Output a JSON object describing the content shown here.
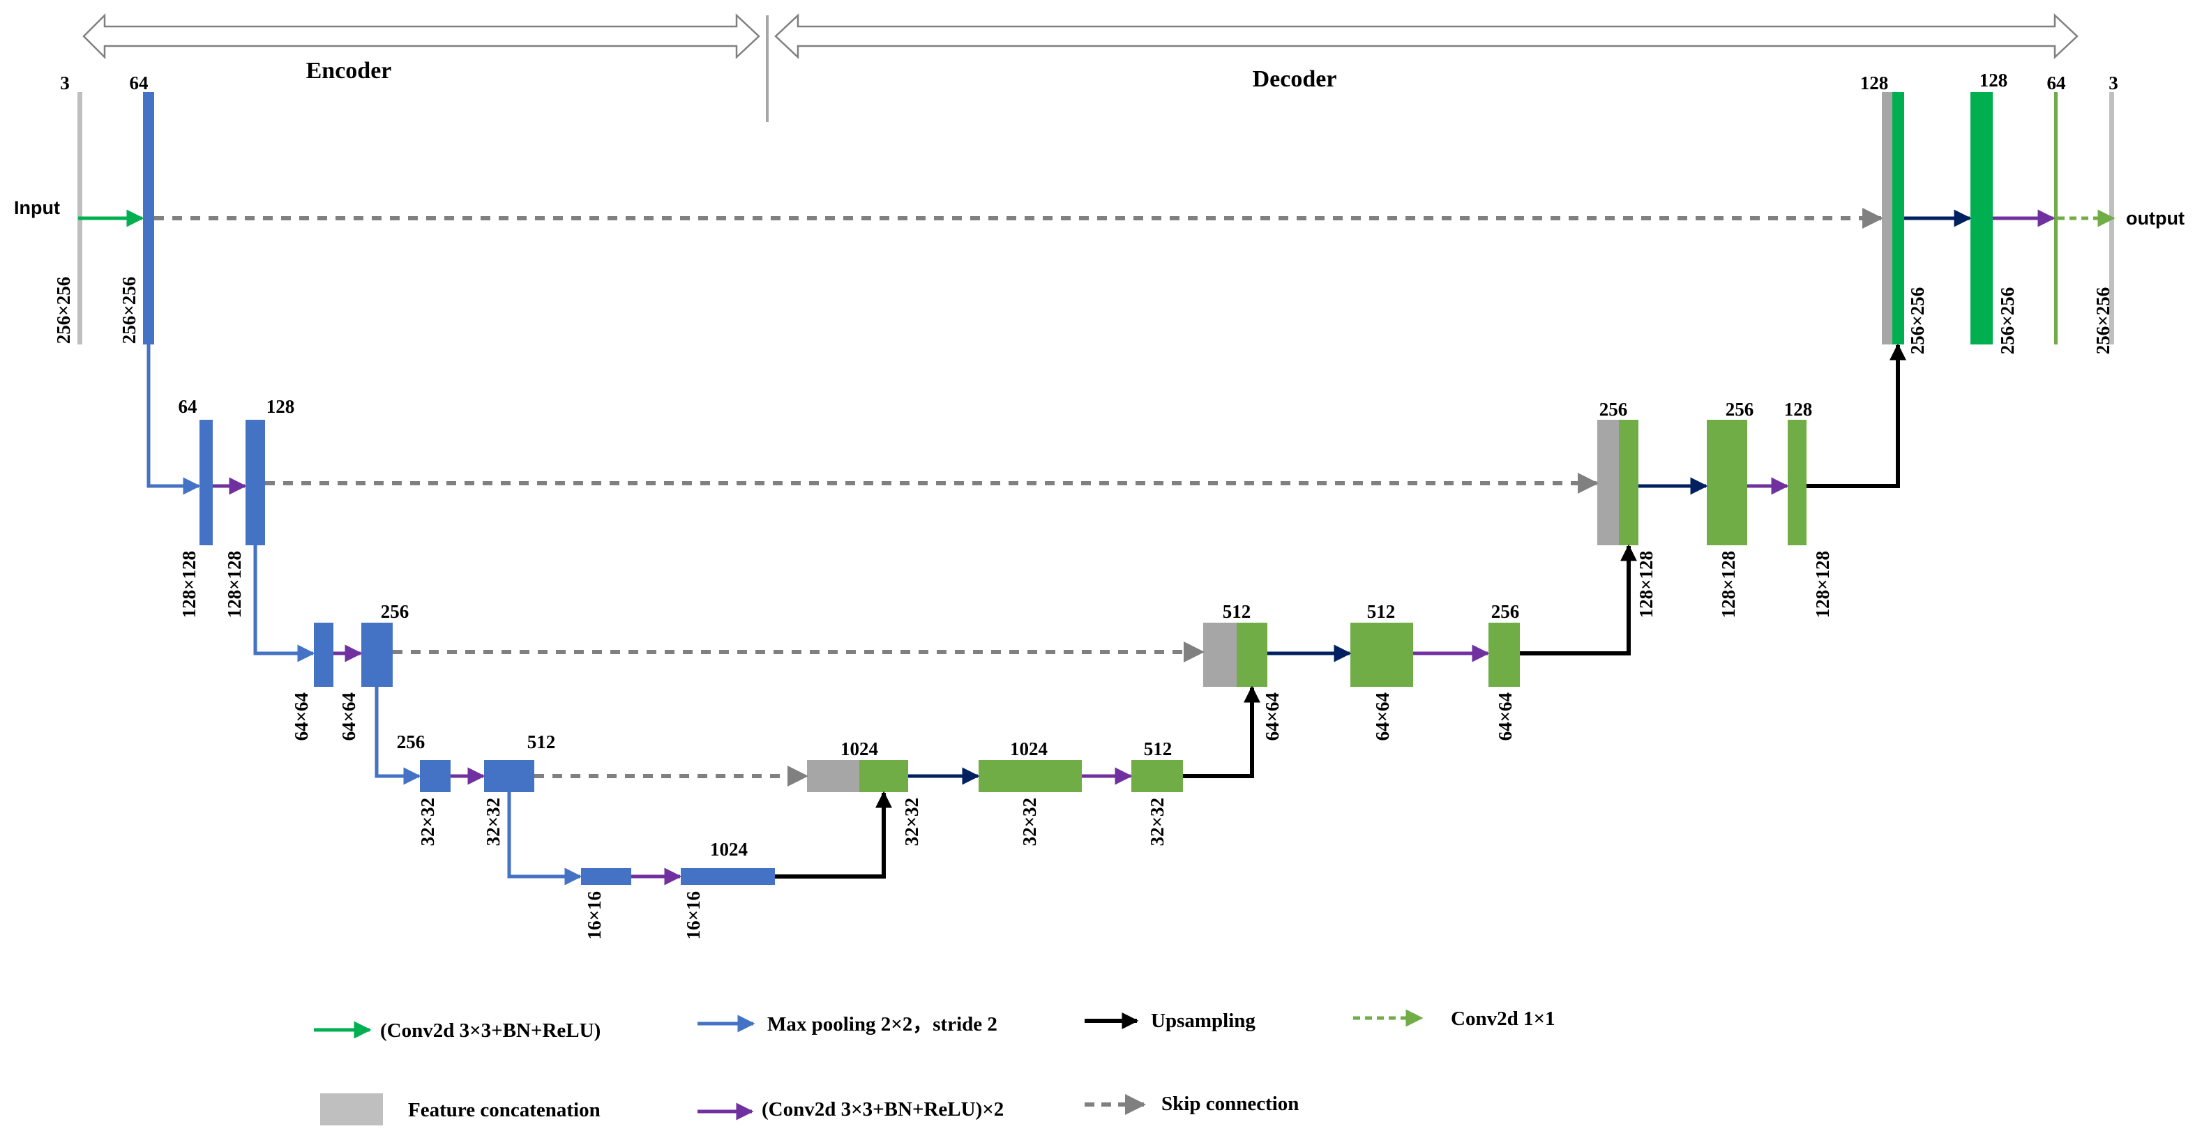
{
  "header": {
    "encoder": "Encoder",
    "decoder": "Decoder"
  },
  "io": {
    "input": "Input",
    "output": "output"
  },
  "colors": {
    "encoder_block": "#4472C4",
    "decoder_block": "#70AD47",
    "decoder_top_block": "#00B050",
    "concat_block": "#A6A6A6",
    "input_output_bar": "#BFBFBF",
    "conv_arrow": "#00B050",
    "pool_arrow": "#4472C4",
    "double_conv_arrow": "#7030A0",
    "upsample_arrow": "#000000",
    "transition_arrow": "#002060",
    "skip_arrow": "#808080",
    "final_conv_arrow": "#70AD47"
  },
  "encoder": {
    "level1": {
      "in_channels": "3",
      "channels": "64",
      "in_size": "256×256",
      "size": "256×256"
    },
    "level2": {
      "pool_channels": "64",
      "channels": "128",
      "pool_size": "128×128",
      "size": "128×128"
    },
    "level3": {
      "channels": "256",
      "pool_size": "64×64",
      "size": "64×64"
    },
    "level4": {
      "pool_channels": "256",
      "channels": "512",
      "pool_size": "32×32",
      "size": "32×32"
    },
    "level5": {
      "channels": "1024",
      "pool_size": "16×16",
      "size": "16×16"
    }
  },
  "decoder": {
    "level4": {
      "concat_channels": "1024",
      "conv_channels": "1024",
      "up_channels": "512",
      "concat_size": "32×32",
      "conv_size": "32×32",
      "up_size": "32×32"
    },
    "level3": {
      "concat_channels": "512",
      "conv_channels": "512",
      "up_channels": "256",
      "concat_size": "64×64",
      "conv_size": "64×64",
      "up_size": "64×64"
    },
    "level2": {
      "concat_channels": "256",
      "conv_channels": "256",
      "up_channels": "128",
      "concat_size": "128×128",
      "conv_size": "128×128",
      "up_size": "128×128"
    },
    "level1": {
      "concat_channels": "128",
      "conv_channels": "128",
      "final_channels": "64",
      "out_channels": "3",
      "concat_size": "256×256",
      "conv_size": "256×256",
      "out_size": "256×256"
    }
  },
  "legend": {
    "conv": "(Conv2d 3×3+BN+ReLU)",
    "maxpool": "Max pooling 2×2，stride 2",
    "upsampling": "Upsampling",
    "conv1x1": "Conv2d 1×1",
    "concat": "Feature  concatenation",
    "double_conv": "(Conv2d 3×3+BN+ReLU)×2",
    "skip": "Skip connection"
  }
}
